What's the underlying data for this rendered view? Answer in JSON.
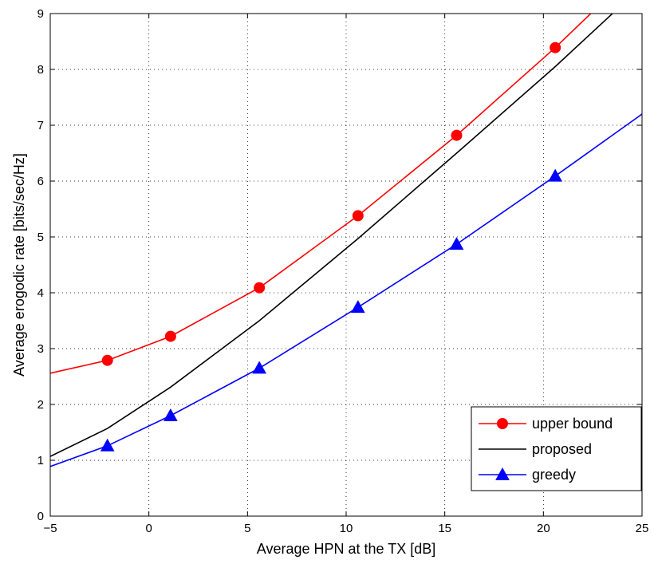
{
  "chart_data": {
    "type": "line",
    "xlabel": "Average HPN at the TX [dB]",
    "ylabel": "Average erogodic rate [bits/sec/Hz]",
    "xlim": [
      -5,
      25
    ],
    "ylim": [
      0,
      9
    ],
    "xticks": [
      -5,
      0,
      5,
      10,
      15,
      20,
      25
    ],
    "yticks": [
      0,
      1,
      2,
      3,
      4,
      5,
      6,
      7,
      8,
      9
    ],
    "grid": true,
    "legend_position": "bottom-right",
    "series": [
      {
        "name": "upper bound",
        "color": "#ff0000",
        "marker": "circle",
        "x": [
          -5,
          -2.1,
          1.1,
          5.6,
          10.6,
          15.6,
          20.6,
          22.4
        ],
        "y": [
          2.56,
          2.79,
          3.22,
          4.09,
          5.38,
          6.82,
          8.39,
          9.0
        ],
        "marker_x": [
          -2.1,
          1.1,
          5.6,
          10.6,
          15.6,
          20.6
        ]
      },
      {
        "name": "proposed",
        "color": "#000000",
        "marker": "none",
        "x": [
          -5,
          -2.1,
          1.1,
          5.6,
          10.6,
          15.6,
          20.6,
          23.5
        ],
        "y": [
          1.07,
          1.57,
          2.31,
          3.5,
          4.97,
          6.5,
          8.05,
          9.0
        ],
        "marker_x": []
      },
      {
        "name": "greedy",
        "color": "#0000ff",
        "marker": "triangle",
        "x": [
          -5,
          -2.1,
          1.1,
          5.6,
          10.6,
          15.6,
          20.6,
          25
        ],
        "y": [
          0.89,
          1.26,
          1.8,
          2.65,
          3.74,
          4.87,
          6.09,
          7.2
        ],
        "marker_x": [
          -2.1,
          1.1,
          5.6,
          10.6,
          15.6,
          20.6
        ]
      }
    ]
  }
}
